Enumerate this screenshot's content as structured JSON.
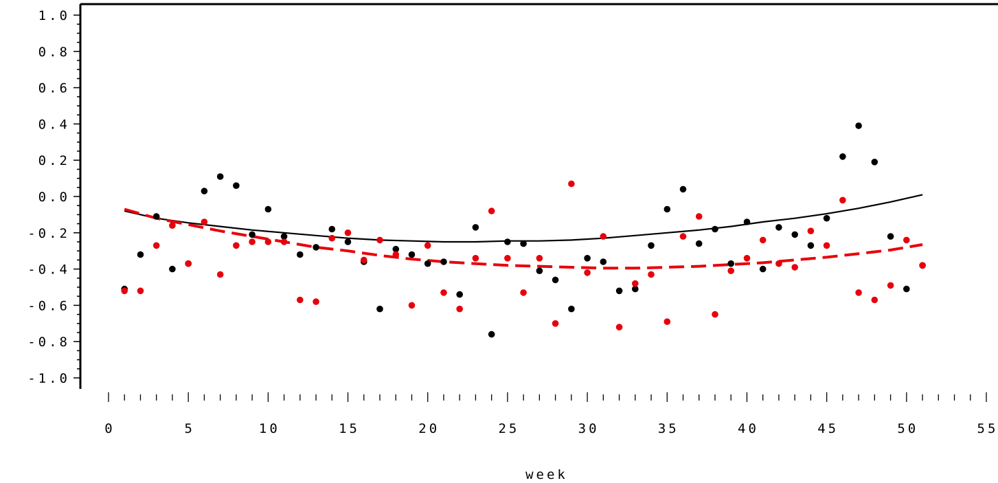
{
  "chart_data": {
    "type": "scatter",
    "title": "",
    "xlabel": "week",
    "ylabel": "",
    "xlim": [
      0,
      55
    ],
    "ylim": [
      -1.0,
      1.0
    ],
    "x_ticks": [
      0,
      5,
      10,
      15,
      20,
      25,
      30,
      35,
      40,
      45,
      50,
      55
    ],
    "x_tick_labels": [
      "0",
      "5",
      "10",
      "15",
      "20",
      "25",
      "30",
      "35",
      "40",
      "45",
      "50",
      "55"
    ],
    "y_ticks": [
      -1.0,
      -0.8,
      -0.6,
      -0.4,
      -0.2,
      0.0,
      0.2,
      0.4,
      0.6,
      0.8,
      1.0
    ],
    "y_tick_labels": [
      "-1.0",
      "-0.8",
      "-0.6",
      "-0.4",
      "-0.2",
      "0.0",
      "0.2",
      "0.4",
      "0.6",
      "0.8",
      "1.0"
    ],
    "grid": false,
    "legend": "none",
    "series": [
      {
        "color": "#000000",
        "marker": "circle",
        "x": [
          1,
          2,
          3,
          4,
          5,
          6,
          7,
          8,
          9,
          10,
          11,
          12,
          13,
          14,
          15,
          16,
          17,
          18,
          19,
          20,
          21,
          22,
          23,
          24,
          25,
          26,
          27,
          28,
          29,
          30,
          31,
          32,
          33,
          34,
          35,
          36,
          37,
          38,
          39,
          40,
          41,
          42,
          43,
          44,
          45,
          46,
          47,
          48,
          49,
          50,
          51
        ],
        "y": [
          -0.51,
          -0.32,
          -0.11,
          -0.4,
          -0.37,
          0.03,
          0.11,
          0.06,
          -0.21,
          -0.07,
          -0.22,
          -0.32,
          -0.28,
          -0.18,
          -0.25,
          -0.36,
          -0.62,
          -0.29,
          -0.32,
          -0.37,
          -0.36,
          -0.54,
          -0.17,
          -0.76,
          -0.25,
          -0.26,
          -0.41,
          -0.46,
          -0.62,
          -0.34,
          -0.36,
          -0.52,
          -0.51,
          -0.27,
          -0.07,
          0.04,
          -0.26,
          -0.18,
          -0.37,
          -0.14,
          -0.4,
          -0.17,
          -0.21,
          -0.27,
          -0.12,
          0.22,
          0.39,
          0.19,
          -0.22,
          -0.51,
          -0.38
        ]
      },
      {
        "color": "#e8000b",
        "marker": "circle",
        "x": [
          1,
          2,
          3,
          4,
          5,
          6,
          7,
          8,
          9,
          10,
          11,
          12,
          13,
          14,
          15,
          16,
          17,
          18,
          19,
          20,
          21,
          22,
          23,
          24,
          25,
          26,
          27,
          28,
          29,
          30,
          31,
          32,
          33,
          34,
          35,
          36,
          37,
          38,
          39,
          40,
          41,
          42,
          43,
          44,
          45,
          46,
          47,
          48,
          49,
          50,
          51
        ],
        "y": [
          -0.52,
          -0.52,
          -0.27,
          -0.16,
          -0.37,
          -0.14,
          -0.43,
          -0.27,
          -0.25,
          -0.25,
          -0.25,
          -0.57,
          -0.58,
          -0.23,
          -0.2,
          -0.35,
          -0.24,
          -0.32,
          -0.6,
          -0.27,
          -0.53,
          -0.62,
          -0.34,
          -0.08,
          -0.34,
          -0.53,
          -0.34,
          -0.7,
          0.07,
          -0.42,
          -0.22,
          -0.72,
          -0.48,
          -0.43,
          -0.69,
          -0.22,
          -0.11,
          -0.65,
          -0.41,
          -0.34,
          -0.24,
          -0.37,
          -0.39,
          -0.19,
          -0.27,
          -0.02,
          -0.53,
          -0.57,
          -0.49,
          -0.24,
          -0.38
        ]
      }
    ],
    "trend_lines": [
      {
        "color": "#000000",
        "style": "solid",
        "x": [
          1,
          3,
          5,
          7,
          9,
          11,
          13,
          15,
          17,
          19,
          21,
          23,
          25,
          27,
          29,
          31,
          33,
          35,
          37,
          39,
          41,
          43,
          45,
          47,
          49,
          51
        ],
        "y": [
          -0.08,
          -0.12,
          -0.145,
          -0.165,
          -0.185,
          -0.2,
          -0.215,
          -0.23,
          -0.24,
          -0.245,
          -0.25,
          -0.25,
          -0.245,
          -0.245,
          -0.24,
          -0.23,
          -0.215,
          -0.2,
          -0.185,
          -0.165,
          -0.14,
          -0.12,
          -0.095,
          -0.065,
          -0.03,
          0.01
        ]
      },
      {
        "color": "#e8000b",
        "style": "dashed",
        "x": [
          1,
          3,
          5,
          7,
          9,
          11,
          13,
          15,
          17,
          19,
          21,
          23,
          25,
          27,
          29,
          31,
          33,
          35,
          37,
          39,
          41,
          43,
          45,
          47,
          49,
          51
        ],
        "y": [
          -0.07,
          -0.12,
          -0.155,
          -0.19,
          -0.22,
          -0.25,
          -0.28,
          -0.3,
          -0.325,
          -0.345,
          -0.36,
          -0.37,
          -0.38,
          -0.385,
          -0.39,
          -0.395,
          -0.395,
          -0.39,
          -0.385,
          -0.375,
          -0.365,
          -0.35,
          -0.335,
          -0.315,
          -0.295,
          -0.265
        ]
      }
    ]
  }
}
